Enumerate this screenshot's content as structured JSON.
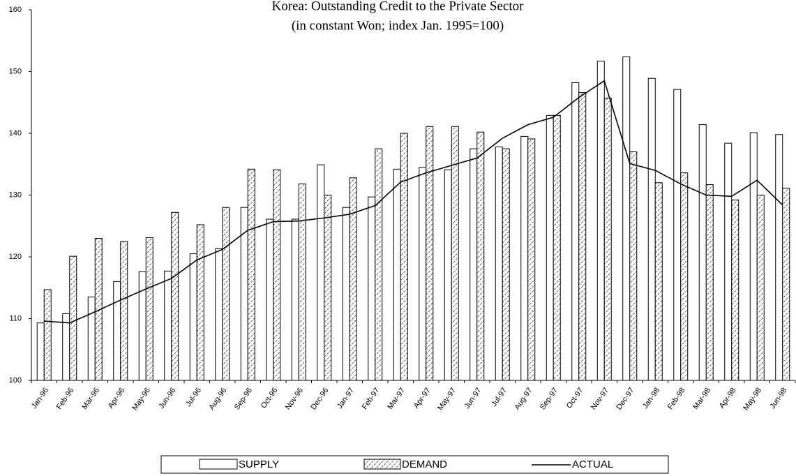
{
  "chart_data": {
    "type": "bar",
    "title": "Korea: Outstanding Credit to the Private Sector",
    "subtitle": "(in constant Won; index Jan. 1995=100)",
    "categories": [
      "Jan-96",
      "Feb-96",
      "Mar-96",
      "Apr-96",
      "May-96",
      "Jun-96",
      "Jul-96",
      "Aug-96",
      "Sep-96",
      "Oct-96",
      "Nov-96",
      "Dec-96",
      "Jan-97",
      "Feb-97",
      "Mar-97",
      "Apr-97",
      "May-97",
      "Jun-97",
      "Jul-97",
      "Aug-97",
      "Sep-97",
      "Oct-97",
      "Nov-97",
      "Dec-97",
      "Jan-98",
      "Feb-98",
      "Mar-98",
      "Apr-98",
      "May-98",
      "Jun-98"
    ],
    "series": [
      {
        "name": "SUPPLY",
        "type": "bar",
        "color": "#ffffff",
        "values": [
          109.3,
          110.8,
          113.5,
          116.0,
          117.6,
          117.7,
          120.5,
          121.3,
          128.0,
          126.1,
          126.1,
          134.9,
          128.0,
          129.7,
          134.2,
          134.5,
          134.1,
          137.5,
          137.8,
          139.5,
          142.9,
          148.2,
          151.7,
          152.4,
          148.9,
          147.1,
          141.4,
          138.4,
          140.1,
          139.8
        ]
      },
      {
        "name": "DEMAND",
        "type": "bar",
        "color": "#000000",
        "pattern": "hatch",
        "values": [
          114.7,
          120.1,
          123.0,
          122.5,
          123.1,
          127.2,
          125.2,
          128.0,
          134.2,
          134.1,
          131.8,
          130.0,
          132.8,
          137.5,
          140.0,
          141.1,
          141.1,
          140.2,
          137.5,
          139.1,
          142.9,
          146.6,
          145.7,
          137.0,
          132.0,
          133.6,
          131.7,
          129.2,
          130.0,
          131.1
        ]
      },
      {
        "name": "ACTUAL",
        "type": "line",
        "color": "#000000",
        "values": [
          109.6,
          109.3,
          111.1,
          113.0,
          114.8,
          116.5,
          119.5,
          121.2,
          124.3,
          125.7,
          125.8,
          126.3,
          126.9,
          128.3,
          132.1,
          133.6,
          134.8,
          136.0,
          139.2,
          141.4,
          142.6,
          145.8,
          148.5,
          135.1,
          134.0,
          131.8,
          130.0,
          129.8,
          132.4,
          128.4
        ]
      }
    ],
    "ylim": [
      100,
      160
    ],
    "yticks": [
      100,
      110,
      120,
      130,
      140,
      150,
      160
    ],
    "grid": false,
    "legend": "bottom"
  }
}
